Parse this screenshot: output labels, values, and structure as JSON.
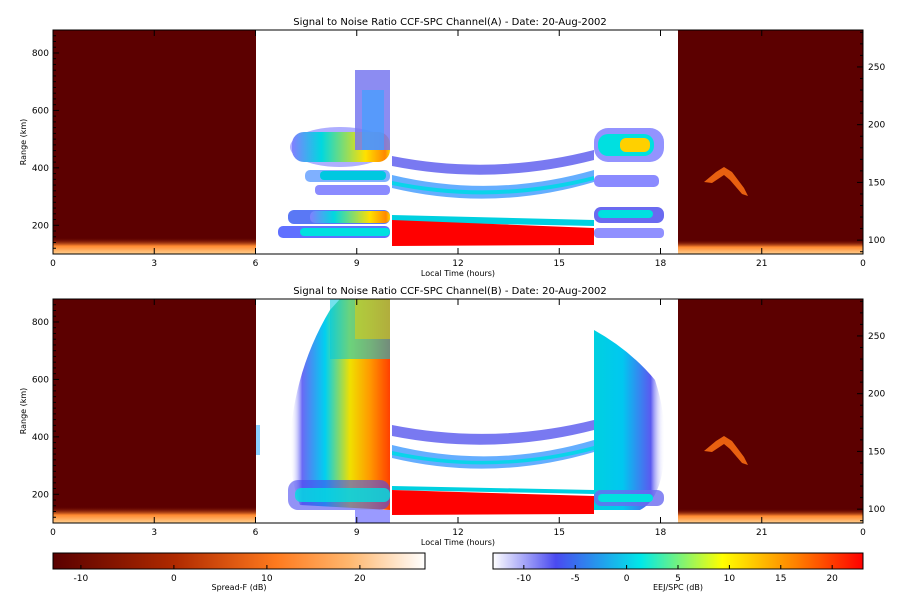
{
  "chart_data": [
    {
      "type": "heatmap",
      "title": "Signal to Noise Ratio CCF-SPC Channel(A) - Date: 20-Aug-2002",
      "xlabel": "Local Time (hours)",
      "ylabel": "Range (km)",
      "xlim": [
        0,
        24
      ],
      "ylim": [
        100,
        880
      ],
      "y2lim": [
        88,
        282
      ],
      "x_ticks": [
        "0",
        "3",
        "6",
        "9",
        "12",
        "15",
        "18",
        "21",
        "0"
      ],
      "y_ticks": [
        200,
        400,
        600,
        800
      ],
      "y2_ticks": [
        100,
        150,
        200,
        250
      ],
      "segments": [
        {
          "mode": "Spread-F",
          "time_range": [
            0,
            6
          ],
          "background_db": -13,
          "bottom_layer_range_km": [
            100,
            130
          ],
          "bottom_layer_db": [
            5,
            20
          ]
        },
        {
          "mode": "F-region",
          "time_range": [
            6.8,
            10
          ],
          "layers_km": [
            {
              "range": [
                150,
                170
              ],
              "peak_db": 4
            },
            {
              "range": [
                200,
                240
              ],
              "peak_db": 12
            },
            {
              "range": [
                300,
                350
              ],
              "peak_db": 10
            },
            {
              "range": [
                430,
                530
              ],
              "peak_db": 17
            },
            {
              "range": [
                560,
                750
              ],
              "peak_db": 2
            }
          ]
        },
        {
          "mode": "EEJ/SPC",
          "time_range": [
            10,
            16
          ],
          "strong_echo_km": [
            150,
            215
          ],
          "strong_echo_db": 22,
          "weak_bands_km": [
            [
              320,
              380
            ],
            [
              400,
              450
            ]
          ],
          "weak_db": -8
        },
        {
          "mode": "F-region",
          "time_range": [
            16,
            18.5
          ],
          "layers_km": [
            {
              "range": [
                130,
                170
              ],
              "peak_db": 2
            },
            {
              "range": [
                200,
                230
              ],
              "peak_db": 10
            },
            {
              "range": [
                300,
                330
              ],
              "peak_db": 0
            },
            {
              "range": [
                420,
                520
              ],
              "peak_db": 12
            }
          ]
        },
        {
          "mode": "Spread-F",
          "time_range": [
            18.5,
            24
          ],
          "background_db": -13,
          "feature_y2": [
            [
              20.2,
              155
            ],
            [
              20.8,
              160
            ],
            [
              21.2,
              140
            ]
          ],
          "feature_db": 12
        }
      ]
    },
    {
      "type": "heatmap",
      "title": "Signal to Noise Ratio CCF-SPC Channel(B) - Date: 20-Aug-2002",
      "xlabel": "Local Time (hours)",
      "ylabel": "Range (km)",
      "xlim": [
        0,
        24
      ],
      "ylim": [
        100,
        880
      ],
      "y2lim": [
        88,
        282
      ],
      "x_ticks": [
        "0",
        "3",
        "6",
        "9",
        "12",
        "15",
        "18",
        "21",
        "0"
      ],
      "y_ticks": [
        200,
        400,
        600,
        800
      ],
      "y2_ticks": [
        100,
        150,
        200,
        250
      ],
      "segments": [
        {
          "mode": "Spread-F",
          "time_range": [
            0,
            6
          ],
          "background_db": -13,
          "bottom_layer_range_km": [
            100,
            130
          ],
          "bottom_layer_db": [
            5,
            20
          ]
        },
        {
          "mode": "F-region",
          "time_range": [
            6.5,
            10
          ],
          "plume_km": [
            160,
            880
          ],
          "peak_db": 18
        },
        {
          "mode": "EEJ/SPC",
          "time_range": [
            10,
            16
          ],
          "strong_echo_km": [
            145,
            210
          ],
          "strong_echo_db": 22,
          "weak_bands_km": [
            [
              300,
              380
            ],
            [
              400,
              440
            ]
          ],
          "weak_db": -8
        },
        {
          "mode": "F-region",
          "time_range": [
            16,
            18.2
          ],
          "plume_km": [
            160,
            700
          ],
          "peak_db": 5
        },
        {
          "mode": "Spread-F",
          "time_range": [
            18.5,
            24
          ],
          "background_db": -13,
          "feature_y2": [
            [
              20.2,
              155
            ],
            [
              20.8,
              160
            ],
            [
              21.2,
              140
            ]
          ],
          "feature_db": 12
        }
      ]
    }
  ],
  "colorbars": [
    {
      "label": "Spread-F (dB)",
      "ticks": [
        "-10",
        "0",
        "10",
        "20"
      ],
      "range": [
        -13,
        27
      ],
      "colors": [
        "#5a0000",
        "#b02a00",
        "#ff7a1e",
        "#ffb870",
        "#ffffff"
      ]
    },
    {
      "label": "EEJ/SPC (dB)",
      "ticks": [
        "-10",
        "-5",
        "0",
        "5",
        "10",
        "15",
        "20"
      ],
      "range": [
        -13,
        23
      ],
      "colors": [
        "#ffffff",
        "#4a4af0",
        "#00e8e8",
        "#ffff00",
        "#ff8000",
        "#ff0000"
      ]
    }
  ]
}
